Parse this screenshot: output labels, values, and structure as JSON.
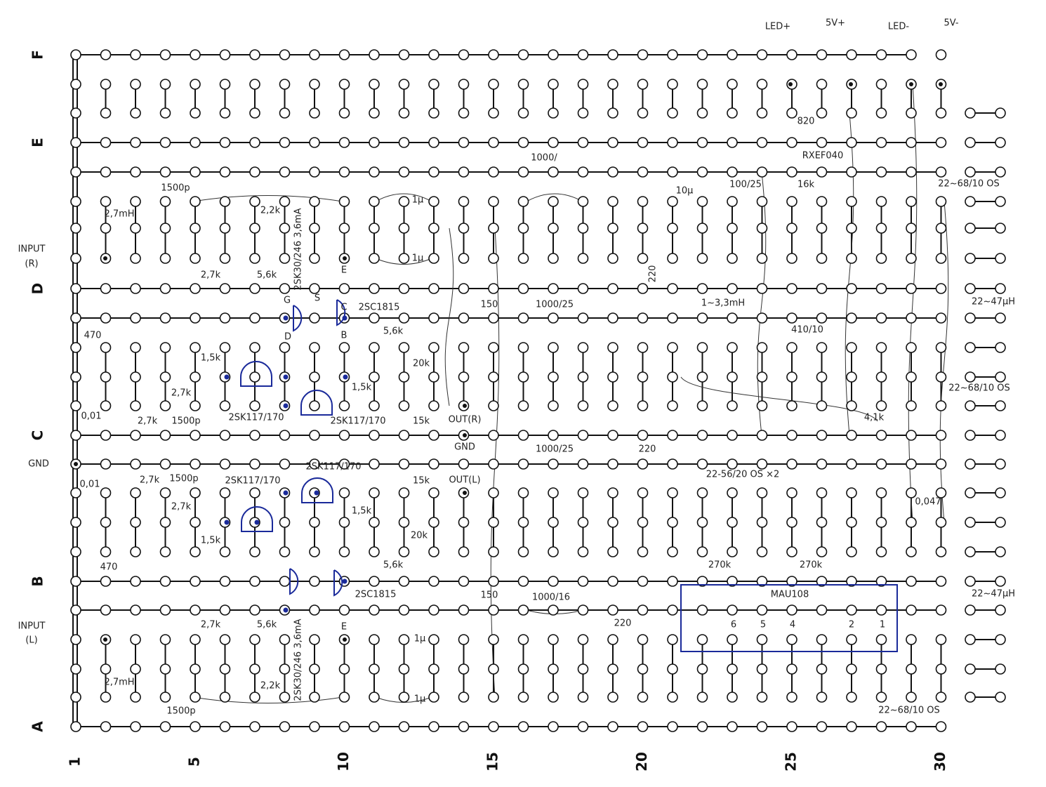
{
  "rows": [
    "F",
    "E",
    "D",
    "C",
    "B",
    "A"
  ],
  "columns": [
    "1",
    "5",
    "10",
    "15",
    "20",
    "25",
    "30"
  ],
  "annotations": [
    {
      "text": "LED+"
    },
    {
      "text": "5V+"
    },
    {
      "text": "LED-"
    },
    {
      "text": "5V-"
    },
    {
      "text": "INPUT"
    },
    {
      "text": "(R)"
    },
    {
      "text": "GND"
    },
    {
      "text": "INPUT"
    },
    {
      "text": "(L)"
    },
    {
      "text": "820"
    },
    {
      "text": "RXEF040"
    },
    {
      "text": "1000/"
    },
    {
      "text": "1500p"
    },
    {
      "text": "2,7mH"
    },
    {
      "text": "2,2k"
    },
    {
      "text": "2SK30/246 3,6mA"
    },
    {
      "text": "100/25"
    },
    {
      "text": "16k"
    },
    {
      "text": "22~68/10 OS"
    },
    {
      "text": "10μ"
    },
    {
      "text": "2,7k"
    },
    {
      "text": "5,6k"
    },
    {
      "text": "E"
    },
    {
      "text": "G"
    },
    {
      "text": "S"
    },
    {
      "text": "2SC1815"
    },
    {
      "text": "C"
    },
    {
      "text": "150"
    },
    {
      "text": "1000/25"
    },
    {
      "text": "220"
    },
    {
      "text": "1~3,3mH"
    },
    {
      "text": "22~47μH"
    },
    {
      "text": "470"
    },
    {
      "text": "D"
    },
    {
      "text": "B"
    },
    {
      "text": "5,6k"
    },
    {
      "text": "410/10"
    },
    {
      "text": "1,5k"
    },
    {
      "text": "20k"
    },
    {
      "text": "1,5k"
    },
    {
      "text": "2,7k"
    },
    {
      "text": "0,01"
    },
    {
      "text": "2,7k"
    },
    {
      "text": "1500p"
    },
    {
      "text": "2SK117/170"
    },
    {
      "text": "2SK117/170"
    },
    {
      "text": "15k"
    },
    {
      "text": "OUT(R)"
    },
    {
      "text": "4,1k"
    },
    {
      "text": "22~68/10 OS"
    },
    {
      "text": "GND"
    },
    {
      "text": "1000/25"
    },
    {
      "text": "220"
    },
    {
      "text": "22-56/20 OS ×2"
    },
    {
      "text": "0,01"
    },
    {
      "text": "2,7k"
    },
    {
      "text": "1500p"
    },
    {
      "text": "2SK117/170"
    },
    {
      "text": "2SK117/170"
    },
    {
      "text": "15k"
    },
    {
      "text": "OUT(L)"
    },
    {
      "text": "0,047"
    },
    {
      "text": "2,7k"
    },
    {
      "text": "1,5k"
    },
    {
      "text": "1,5k"
    },
    {
      "text": "20k"
    },
    {
      "text": "270k"
    },
    {
      "text": "270k"
    },
    {
      "text": "470"
    },
    {
      "text": "5,6k"
    },
    {
      "text": "2SC1815"
    },
    {
      "text": "150"
    },
    {
      "text": "1000/16"
    },
    {
      "text": "MAU108"
    },
    {
      "text": "22~47μH"
    },
    {
      "text": "2,7k"
    },
    {
      "text": "5,6k"
    },
    {
      "text": "220"
    },
    {
      "text": "6"
    },
    {
      "text": "5"
    },
    {
      "text": "4"
    },
    {
      "text": "2"
    },
    {
      "text": "1"
    },
    {
      "text": "2,7mH"
    },
    {
      "text": "2,2k"
    },
    {
      "text": "1500p"
    },
    {
      "text": "22~68/10 OS"
    },
    {
      "text": "2SK30/246 3,6mA"
    },
    {
      "text": "1μ"
    },
    {
      "text": "1μ"
    },
    {
      "text": "1μ"
    },
    {
      "text": "1μ"
    },
    {
      "text": "E"
    }
  ]
}
